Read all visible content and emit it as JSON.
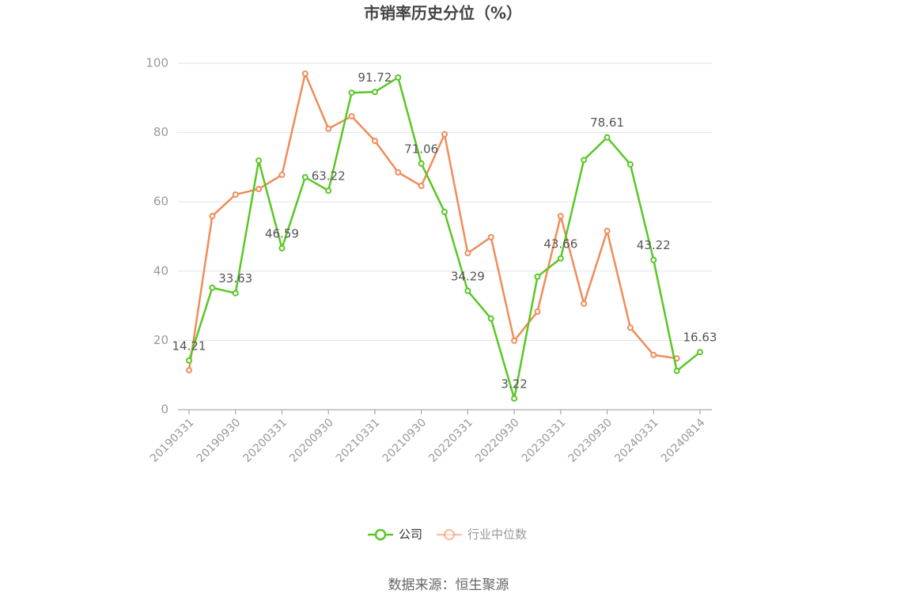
{
  "chart_data": {
    "type": "line",
    "title": "市销率历史分位（%）",
    "source": "数据来源：恒生聚源",
    "categories": [
      "20190331",
      null,
      "20190930",
      null,
      "20200331",
      null,
      "20200930",
      null,
      "20210331",
      null,
      "20210930",
      null,
      "20220331",
      null,
      "20220930",
      null,
      "20230331",
      null,
      "20230930",
      null,
      "20240331",
      null,
      "20240814"
    ],
    "series": [
      {
        "name": "公司",
        "color": "#5ac626",
        "values": [
          14.21,
          35.2,
          33.63,
          71.9,
          46.59,
          67.1,
          63.22,
          91.5,
          91.72,
          95.9,
          71.06,
          57.1,
          34.29,
          26.3,
          3.22,
          38.4,
          43.66,
          72.1,
          78.61,
          70.8,
          43.22,
          11.2,
          16.63
        ],
        "value_labels": [
          "14.21",
          null,
          "33.63",
          null,
          "46.59",
          null,
          "63.22",
          null,
          "91.72",
          null,
          "71.06",
          null,
          "34.29",
          null,
          "3.22",
          null,
          "43.66",
          null,
          "78.61",
          null,
          "43.22",
          null,
          "16.63"
        ]
      },
      {
        "name": "行业中位数",
        "color": "#f08c5a",
        "values": [
          11.4,
          55.9,
          62.1,
          63.7,
          67.8,
          97.0,
          81.1,
          84.7,
          77.6,
          68.5,
          64.6,
          79.5,
          45.2,
          49.8,
          19.9,
          28.3,
          55.9,
          30.6,
          51.6,
          23.7,
          15.8,
          14.8,
          null
        ]
      }
    ],
    "ylim": [
      0,
      100
    ],
    "yticks": [
      0,
      20,
      40,
      60,
      80,
      100
    ],
    "grid": true
  }
}
